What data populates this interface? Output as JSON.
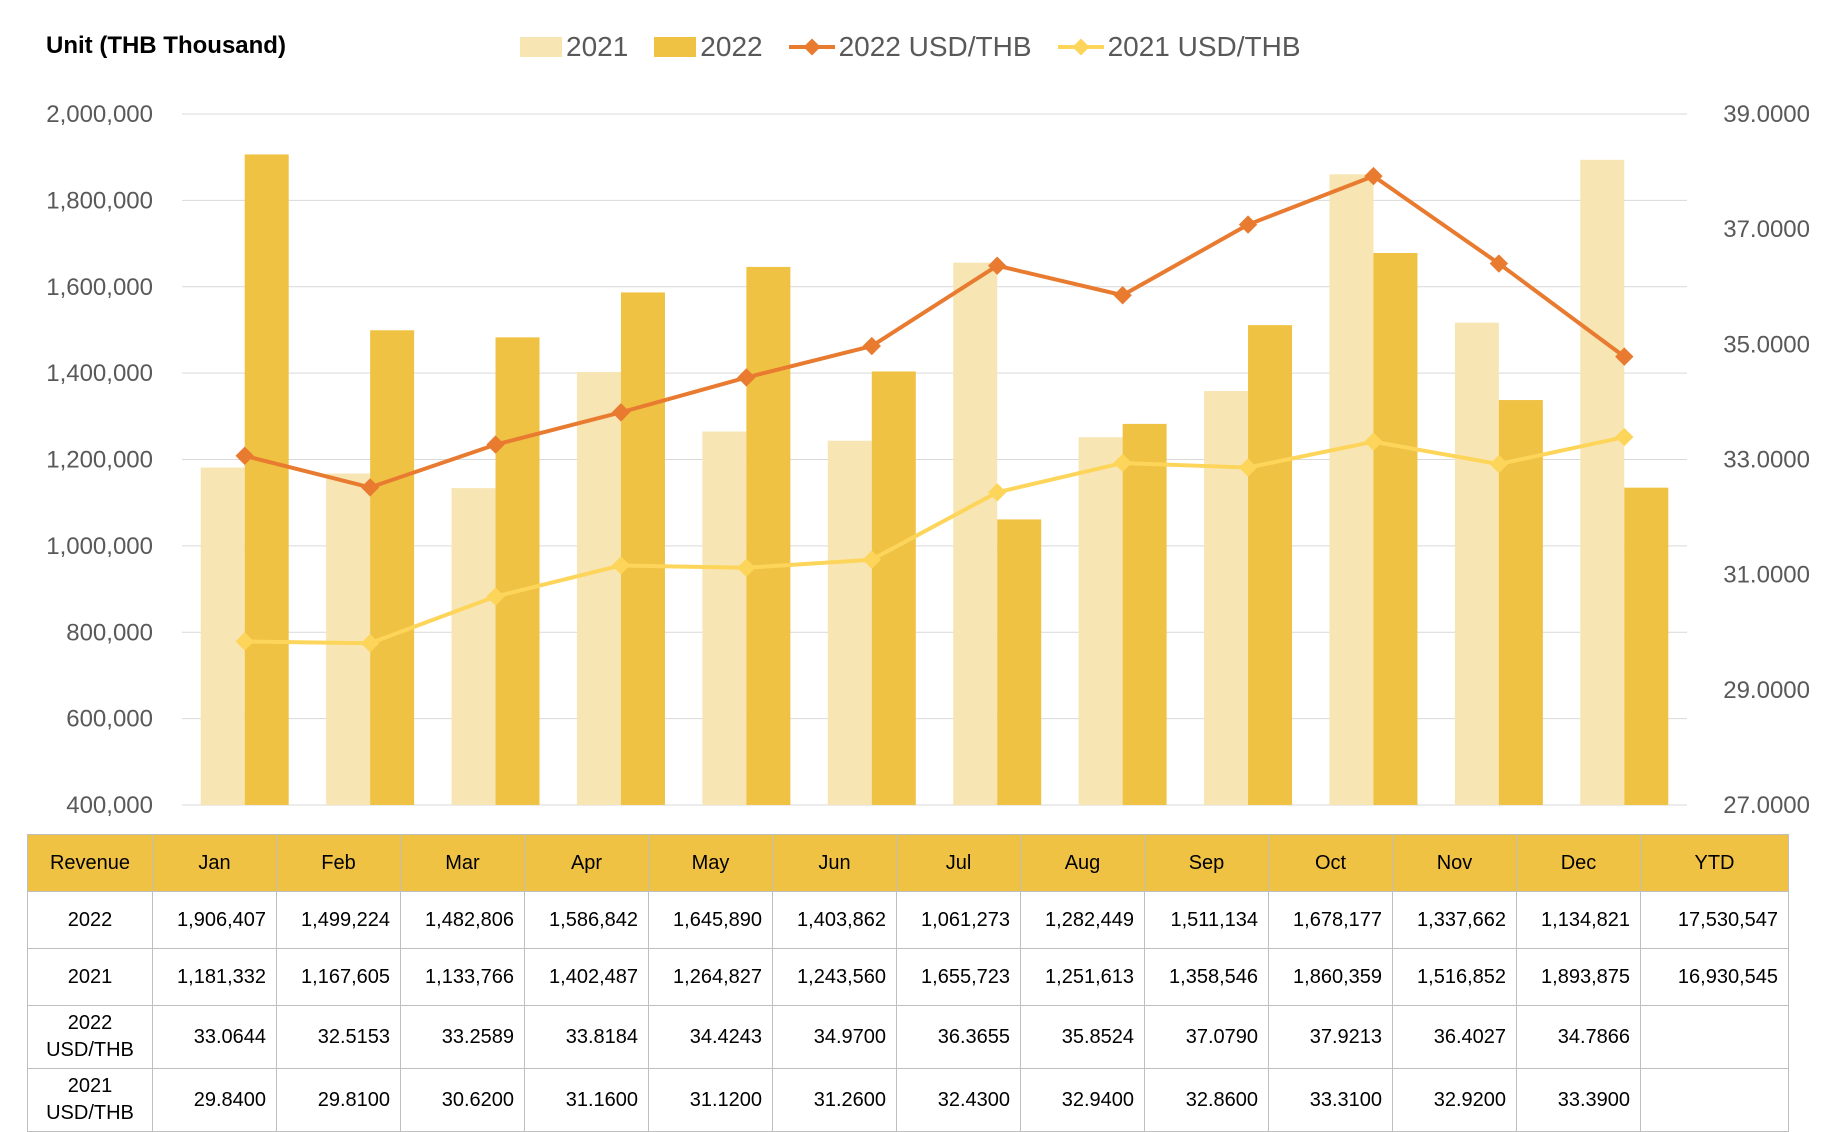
{
  "unit_label": "Unit (THB  Thousand)",
  "colors": {
    "bar2021": "#f8e5b4",
    "bar2022": "#f0c243",
    "line2022": "#e87b30",
    "line2021": "#fdd55a",
    "grid": "#d9d9d9"
  },
  "legend": [
    {
      "label": "2021",
      "kind": "bar",
      "color": "#f8e5b4"
    },
    {
      "label": "2022",
      "kind": "bar",
      "color": "#f0c243"
    },
    {
      "label": "2022 USD/THB",
      "kind": "line",
      "color": "#e87b30"
    },
    {
      "label": "2021 USD/THB",
      "kind": "line",
      "color": "#fdd55a"
    }
  ],
  "chart_data": {
    "type": "bar",
    "categories": [
      "Jan",
      "Feb",
      "Mar",
      "Apr",
      "May",
      "Jun",
      "Jul",
      "Aug",
      "Sep",
      "Oct",
      "Nov",
      "Dec"
    ],
    "series": [
      {
        "name": "2021",
        "type": "bar",
        "axis": "left",
        "values": [
          1181332,
          1167605,
          1133766,
          1402487,
          1264827,
          1243560,
          1655723,
          1251613,
          1358546,
          1860359,
          1516852,
          1893875
        ]
      },
      {
        "name": "2022",
        "type": "bar",
        "axis": "left",
        "values": [
          1906407,
          1499224,
          1482806,
          1586842,
          1645890,
          1403862,
          1061273,
          1282449,
          1511134,
          1678177,
          1337662,
          1134821
        ]
      },
      {
        "name": "2022 USD/THB",
        "type": "line",
        "axis": "right",
        "values": [
          33.0644,
          32.5153,
          33.2589,
          33.8184,
          34.4243,
          34.97,
          36.3655,
          35.8524,
          37.079,
          37.9213,
          36.4027,
          34.7866
        ]
      },
      {
        "name": "2021 USD/THB",
        "type": "line",
        "axis": "right",
        "values": [
          29.84,
          29.81,
          30.62,
          31.16,
          31.12,
          31.26,
          32.43,
          32.94,
          32.86,
          33.31,
          32.92,
          33.39
        ]
      }
    ],
    "ylim": [
      400000,
      2000000
    ],
    "y2lim": [
      27,
      39
    ],
    "yticks": [
      "400,000",
      "600,000",
      "800,000",
      "1,000,000",
      "1,200,000",
      "1,400,000",
      "1,600,000",
      "1,800,000",
      "2,000,000"
    ],
    "y2ticks": [
      "27.0000",
      "29.0000",
      "31.0000",
      "33.0000",
      "35.0000",
      "37.0000",
      "39.0000"
    ],
    "grid": true,
    "legend_position": "top"
  },
  "table": {
    "header": [
      "Revenue",
      "Jan",
      "Feb",
      "Mar",
      "Apr",
      "May",
      "Jun",
      "Jul",
      "Aug",
      "Sep",
      "Oct",
      "Nov",
      "Dec",
      "YTD"
    ],
    "rows": [
      {
        "label": "2022",
        "cells": [
          "1,906,407",
          "1,499,224",
          "1,482,806",
          "1,586,842",
          "1,645,890",
          "1,403,862",
          "1,061,273",
          "1,282,449",
          "1,511,134",
          "1,678,177",
          "1,337,662",
          "1,134,821",
          "17,530,547"
        ]
      },
      {
        "label": "2021",
        "cells": [
          "1,181,332",
          "1,167,605",
          "1,133,766",
          "1,402,487",
          "1,264,827",
          "1,243,560",
          "1,655,723",
          "1,251,613",
          "1,358,546",
          "1,860,359",
          "1,516,852",
          "1,893,875",
          "16,930,545"
        ]
      },
      {
        "label": "2022 USD/THB",
        "cells": [
          "33.0644",
          "32.5153",
          "33.2589",
          "33.8184",
          "34.4243",
          "34.9700",
          "36.3655",
          "35.8524",
          "37.0790",
          "37.9213",
          "36.4027",
          "34.7866",
          ""
        ]
      },
      {
        "label": "2021 USD/THB",
        "cells": [
          "29.8400",
          "29.8100",
          "30.6200",
          "31.1600",
          "31.1200",
          "31.2600",
          "32.4300",
          "32.9400",
          "32.8600",
          "33.3100",
          "32.9200",
          "33.3900",
          ""
        ]
      }
    ]
  }
}
